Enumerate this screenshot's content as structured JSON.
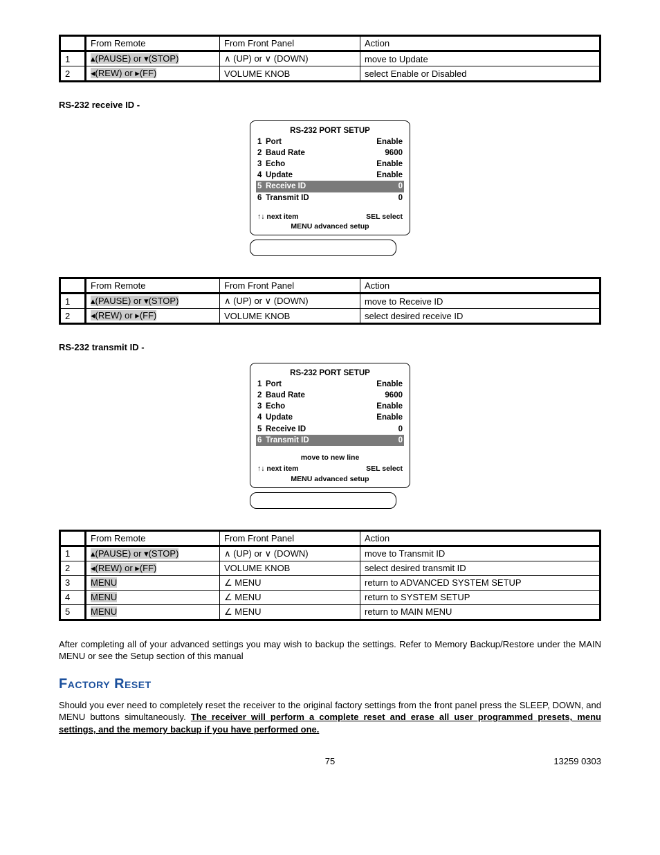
{
  "tables": {
    "headers": [
      "From Remote",
      "From Front Panel",
      "Action"
    ],
    "t1": [
      {
        "n": "1",
        "remote_pre": "▴(PAUSE) or ",
        "remote_hl": "▾(STOP)",
        "panel": "∧ (UP) or ∨ (DOWN)",
        "action": "move to Update",
        "hl_pre": true
      },
      {
        "n": "2",
        "remote_pre": "◂(REW) or ▸(FF)",
        "remote_hl": "",
        "panel": "VOLUME KNOB",
        "action": "select Enable or Disabled",
        "hl_pre": true
      }
    ],
    "t2": [
      {
        "n": "1",
        "remote_pre": "▴(PAUSE) or ",
        "remote_hl": "▾(STOP)",
        "panel": "∧ (UP) or ∨ (DOWN)",
        "action": "move to Receive ID",
        "hl_pre": true
      },
      {
        "n": "2",
        "remote_pre": "◂(REW) or ▸(FF)",
        "remote_hl": "",
        "panel": "VOLUME KNOB",
        "action": "select desired receive ID",
        "hl_pre": true
      }
    ],
    "t3": [
      {
        "n": "1",
        "remote_pre": "▴(PAUSE) or ",
        "remote_hl": "▾(STOP)",
        "panel": "∧ (UP) or ∨ (DOWN)",
        "action": "move to Transmit ID",
        "hl_pre": true
      },
      {
        "n": "2",
        "remote_pre": "◂(REW) or ▸(FF)",
        "remote_hl": "",
        "panel": "VOLUME KNOB",
        "action": "select desired transmit ID",
        "hl_pre": true
      },
      {
        "n": "3",
        "remote_pre": "MENU",
        "remote_hl": "",
        "panel": "∠ MENU",
        "action": "return to ADVANCED SYSTEM SETUP",
        "hl_pre": true
      },
      {
        "n": "4",
        "remote_pre": "MENU",
        "remote_hl": "",
        "panel": "∠ MENU",
        "action": "return to SYSTEM SETUP",
        "hl_pre": true
      },
      {
        "n": "5",
        "remote_pre": "MENU",
        "remote_hl": "",
        "panel": "∠ MENU",
        "action": "return to MAIN MENU",
        "hl_pre": true
      }
    ]
  },
  "labels": {
    "receive": "RS-232 receive ID -",
    "transmit": "RS-232 transmit ID -"
  },
  "lcd": {
    "title": "RS-232 PORT SETUP",
    "rows": [
      {
        "i": "1",
        "n": "Port",
        "v": "Enable"
      },
      {
        "i": "2",
        "n": "Baud Rate",
        "v": "9600"
      },
      {
        "i": "3",
        "n": "Echo",
        "v": "Enable"
      },
      {
        "i": "4",
        "n": "Update",
        "v": "Enable"
      },
      {
        "i": "5",
        "n": "Receive   ID",
        "v": "0"
      },
      {
        "i": "6",
        "n": "Transmit ID",
        "v": "0"
      }
    ],
    "foot_next": "↑↓    next item",
    "foot_sel": "SEL  select",
    "foot_menu": "MENU  advanced setup",
    "extra_line": "move to new line"
  },
  "body": {
    "after": "After completing all of your advanced settings you may wish to backup the settings. Refer to Memory Backup/Restore under the MAIN MENU or see the Setup section of this manual",
    "fr_title": "Factory Reset",
    "fr1": "Should you ever need to completely reset the receiver to the original factory settings from the front panel press the SLEEP, DOWN, and MENU buttons simultaneously. ",
    "fr2": "The receiver will perform a complete reset and erase all user programmed presets, menu settings, and the memory backup if you have performed one."
  },
  "footer": {
    "page": "75",
    "doc": "13259 0303"
  }
}
